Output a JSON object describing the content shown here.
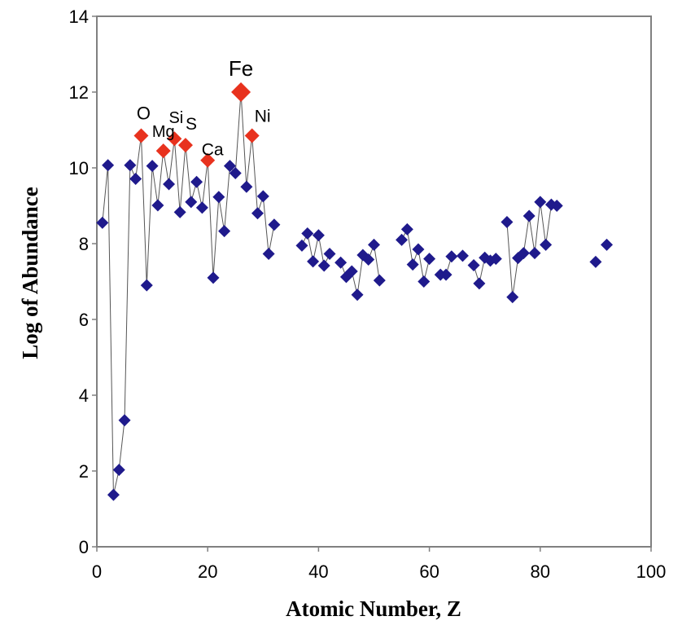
{
  "chart_data": {
    "type": "scatter",
    "title": "",
    "xlabel": "Atomic Number, Z",
    "ylabel": "Log of Abundance",
    "xlim": [
      0,
      100
    ],
    "ylim": [
      0,
      14
    ],
    "x_ticks": [
      "0",
      "20",
      "40",
      "60",
      "80",
      "100"
    ],
    "y_ticks": [
      "0",
      "2",
      "4",
      "6",
      "8",
      "10",
      "12",
      "14"
    ],
    "grid": false,
    "colors": {
      "series": "#1F1A8C",
      "highlight": "#E8321E",
      "line": "#555555",
      "frame": "#808080"
    },
    "series": [
      {
        "x": [
          1,
          2,
          3,
          4,
          5,
          6,
          7,
          9,
          10,
          11,
          13,
          15,
          17,
          18,
          19,
          21,
          22,
          23,
          24,
          25,
          27,
          29,
          30,
          31,
          32,
          37,
          38,
          39,
          40,
          41,
          42,
          44,
          45,
          46,
          47,
          48,
          49,
          50,
          51,
          55,
          56,
          57,
          58,
          59,
          60,
          62,
          63,
          64,
          66,
          68,
          69,
          70,
          71,
          72,
          74,
          75,
          76,
          77,
          78,
          79,
          80,
          81,
          82,
          83,
          90,
          92
        ],
        "y": [
          8.55,
          10.07,
          1.37,
          2.03,
          3.34,
          10.07,
          9.71,
          6.9,
          10.05,
          9.01,
          9.57,
          8.83,
          9.1,
          9.63,
          8.95,
          7.1,
          9.23,
          8.33,
          10.05,
          9.86,
          9.5,
          8.8,
          9.25,
          7.73,
          8.5,
          7.95,
          8.27,
          7.53,
          8.22,
          7.42,
          7.73,
          7.5,
          7.12,
          7.27,
          6.65,
          7.7,
          7.58,
          7.97,
          7.03,
          8.1,
          8.38,
          7.45,
          7.85,
          7.0,
          7.6,
          7.18,
          7.18,
          7.66,
          7.68,
          7.43,
          6.95,
          7.63,
          7.55,
          7.6,
          8.57,
          6.59,
          7.62,
          7.75,
          8.73,
          7.75,
          9.1,
          7.97,
          9.03,
          9.0,
          7.52,
          7.97
        ]
      },
      {
        "x": [
          8,
          12,
          14,
          16,
          20,
          26,
          28
        ],
        "y": [
          10.85,
          10.45,
          10.77,
          10.6,
          10.2,
          12.0,
          10.85
        ]
      }
    ],
    "annotations": [
      {
        "text": "O",
        "x": 8,
        "y": 10.85
      },
      {
        "text": "Mg",
        "x": 12,
        "y": 10.45
      },
      {
        "text": "Si",
        "x": 14,
        "y": 10.77
      },
      {
        "text": "S",
        "x": 16,
        "y": 10.6
      },
      {
        "text": "Ca",
        "x": 20,
        "y": 10.2
      },
      {
        "text": "Fe",
        "x": 26,
        "y": 12.0
      },
      {
        "text": "Ni",
        "x": 28,
        "y": 10.85
      }
    ]
  }
}
